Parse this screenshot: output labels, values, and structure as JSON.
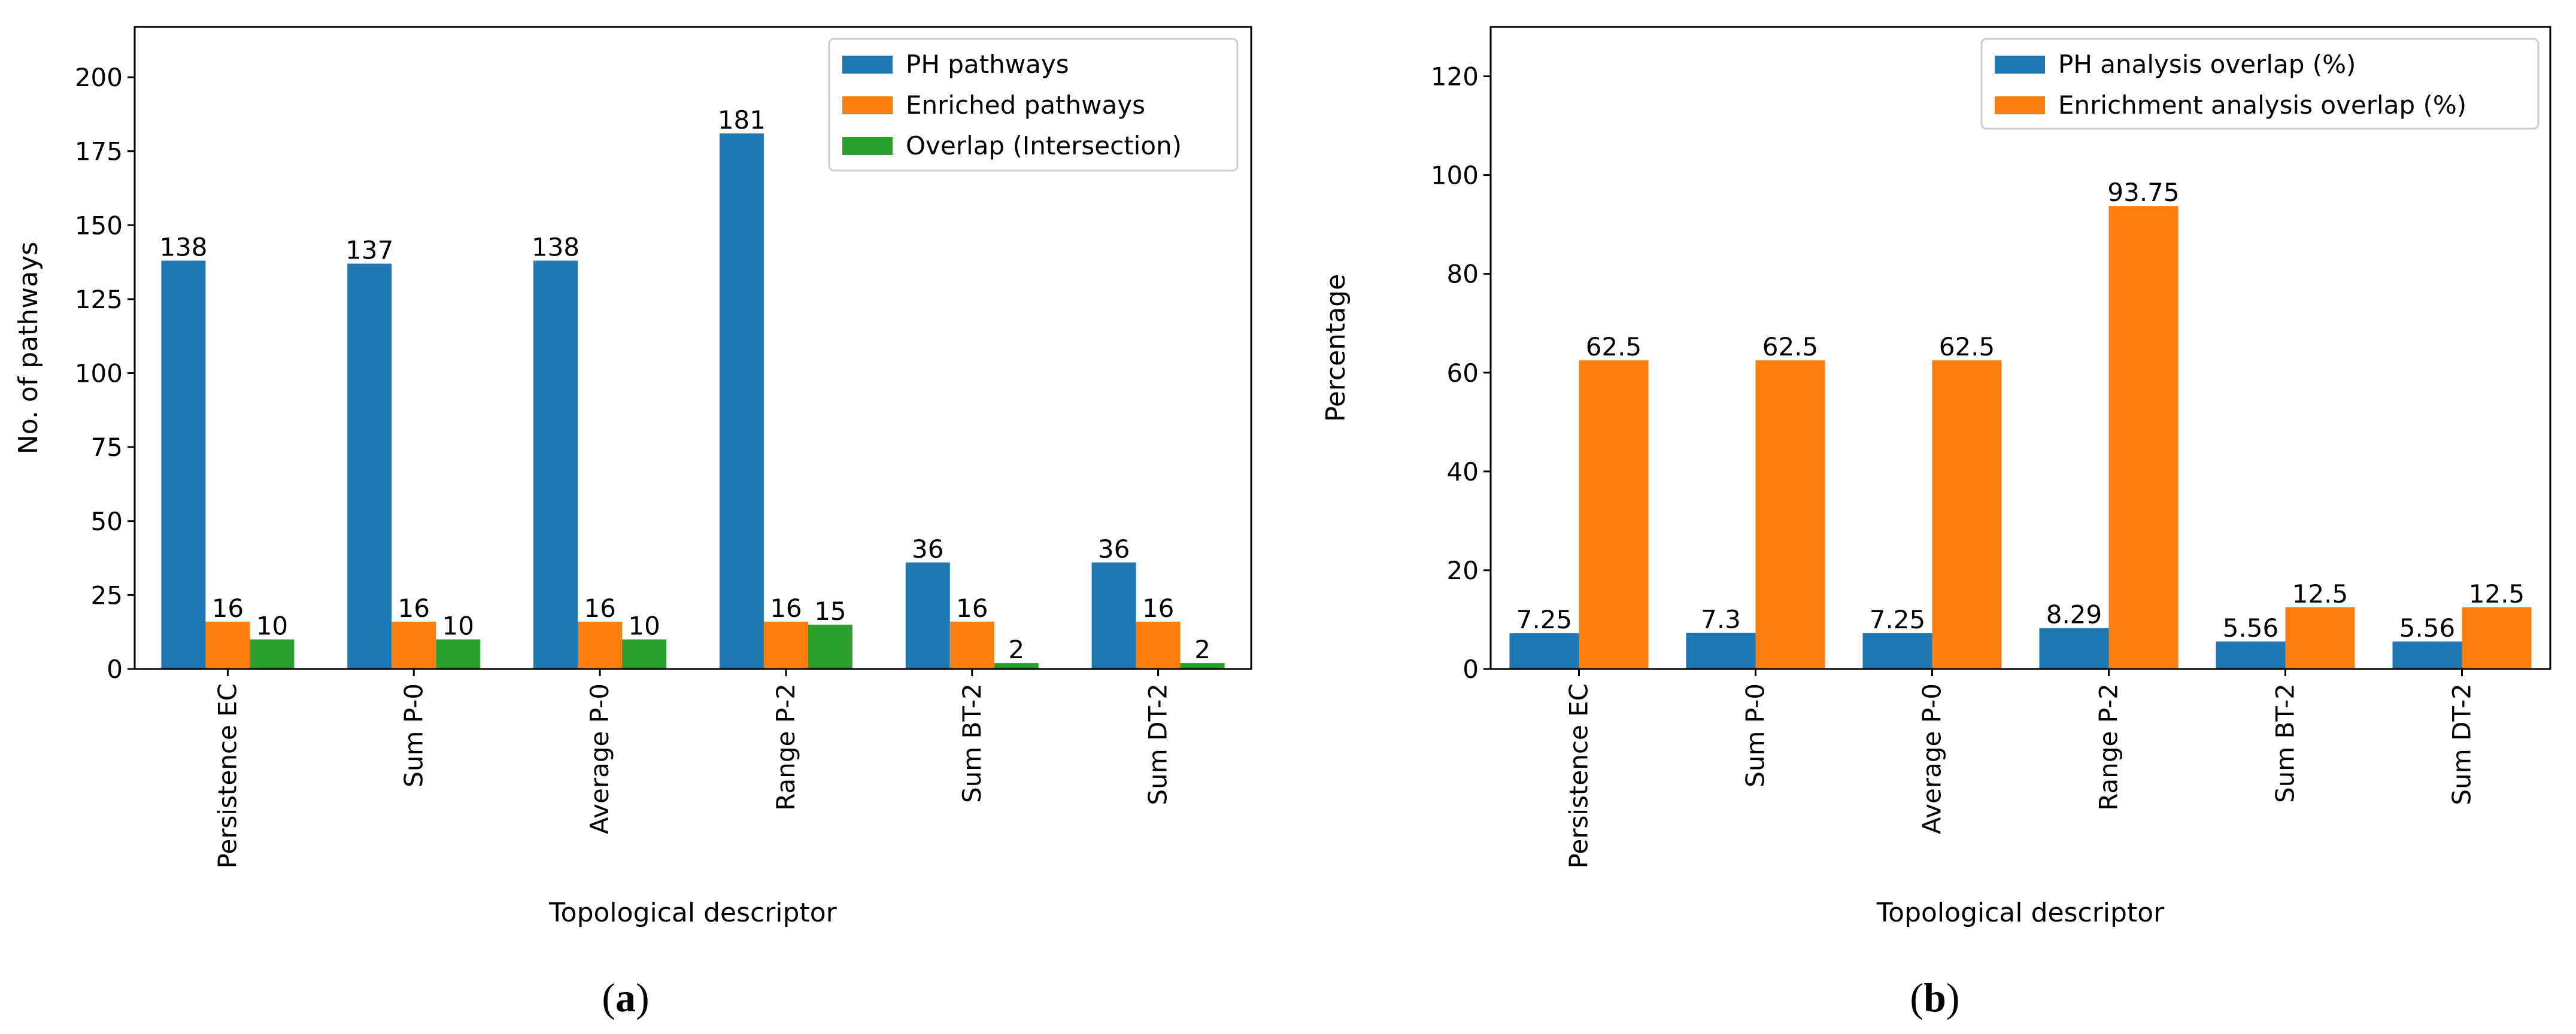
{
  "chart_data": [
    {
      "id": "a",
      "type": "bar",
      "categories": [
        "Persistence EC",
        "Sum P-0",
        "Average P-0",
        "Range P-2",
        "Sum BT-2",
        "Sum DT-2"
      ],
      "series": [
        {
          "name": "PH pathways",
          "values": [
            138,
            137,
            138,
            181,
            36,
            36
          ],
          "labels": [
            "138",
            "137",
            "138",
            "181",
            "36",
            "36"
          ],
          "color": "#1f77b4"
        },
        {
          "name": "Enriched pathways",
          "values": [
            16,
            16,
            16,
            16,
            16,
            16
          ],
          "labels": [
            "16",
            "16",
            "16",
            "16",
            "16",
            "16"
          ],
          "color": "#ff7f0e"
        },
        {
          "name": "Overlap (Intersection)",
          "values": [
            10,
            10,
            10,
            15,
            2,
            2
          ],
          "labels": [
            "10",
            "10",
            "10",
            "15",
            "2",
            "2"
          ],
          "color": "#2ca02c"
        }
      ],
      "title": "",
      "xlabel": "Topological descriptor",
      "ylabel": "No. of pathways",
      "ylim": [
        0,
        217
      ],
      "yticks": [
        0,
        25,
        50,
        75,
        100,
        125,
        150,
        175,
        200
      ],
      "legend": "top-right",
      "caption_bold": "a"
    },
    {
      "id": "b",
      "type": "bar",
      "categories": [
        "Persistence EC",
        "Sum P-0",
        "Average P-0",
        "Range P-2",
        "Sum BT-2",
        "Sum DT-2"
      ],
      "series": [
        {
          "name": "PH analysis overlap (%)",
          "values": [
            7.25,
            7.3,
            7.25,
            8.29,
            5.56,
            5.56
          ],
          "labels": [
            "7.25",
            "7.3",
            "7.25",
            "8.29",
            "5.56",
            "5.56"
          ],
          "color": "#1f77b4"
        },
        {
          "name": "Enrichment analysis overlap (%)",
          "values": [
            62.5,
            62.5,
            62.5,
            93.75,
            12.5,
            12.5
          ],
          "labels": [
            "62.5",
            "62.5",
            "62.5",
            "93.75",
            "12.5",
            "12.5"
          ],
          "color": "#ff7f0e"
        }
      ],
      "title": "",
      "xlabel": "Topological descriptor",
      "ylabel": "Percentage",
      "ylim": [
        0,
        130
      ],
      "yticks": [
        0,
        20,
        40,
        60,
        80,
        100,
        120
      ],
      "legend": "top-right",
      "caption_bold": "b"
    }
  ]
}
